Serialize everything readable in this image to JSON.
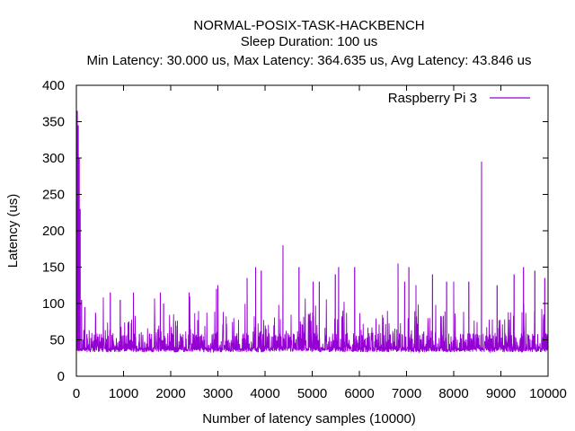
{
  "chart_data": {
    "type": "line",
    "title": "NORMAL-POSIX-TASK-HACKBENCH",
    "subtitle": "Sleep Duration: 100 us",
    "stats_line": "Min Latency: 30.000 us, Max Latency: 364.635 us, Avg Latency: 43.846 us",
    "xlabel": "Number of latency samples (10000)",
    "ylabel": "Latency (us)",
    "xlim": [
      0,
      10000
    ],
    "ylim": [
      0,
      400
    ],
    "x_ticks": [
      0,
      1000,
      2000,
      3000,
      4000,
      5000,
      6000,
      7000,
      8000,
      9000,
      10000
    ],
    "y_ticks": [
      0,
      50,
      100,
      150,
      200,
      250,
      300,
      350,
      400
    ],
    "grid": false,
    "legend_position": "top-right",
    "series": [
      {
        "name": "Raspberry Pi 3",
        "color": "#9400d3",
        "baseline": 35,
        "typical_range": [
          33,
          40
        ],
        "spikes": [
          {
            "x": 20,
            "y": 365
          },
          {
            "x": 40,
            "y": 345
          },
          {
            "x": 60,
            "y": 300
          },
          {
            "x": 80,
            "y": 230
          },
          {
            "x": 110,
            "y": 105
          },
          {
            "x": 180,
            "y": 95
          },
          {
            "x": 720,
            "y": 115
          },
          {
            "x": 930,
            "y": 105
          },
          {
            "x": 1210,
            "y": 115
          },
          {
            "x": 1780,
            "y": 115
          },
          {
            "x": 1850,
            "y": 100
          },
          {
            "x": 2390,
            "y": 115
          },
          {
            "x": 2970,
            "y": 120
          },
          {
            "x": 3000,
            "y": 125
          },
          {
            "x": 3620,
            "y": 135
          },
          {
            "x": 3800,
            "y": 150
          },
          {
            "x": 3920,
            "y": 145
          },
          {
            "x": 4380,
            "y": 180
          },
          {
            "x": 4720,
            "y": 150
          },
          {
            "x": 5020,
            "y": 130
          },
          {
            "x": 5150,
            "y": 130
          },
          {
            "x": 5490,
            "y": 140
          },
          {
            "x": 5560,
            "y": 150
          },
          {
            "x": 5900,
            "y": 150
          },
          {
            "x": 6820,
            "y": 155
          },
          {
            "x": 6960,
            "y": 130
          },
          {
            "x": 7050,
            "y": 150
          },
          {
            "x": 7200,
            "y": 125
          },
          {
            "x": 7550,
            "y": 140
          },
          {
            "x": 7850,
            "y": 130
          },
          {
            "x": 8000,
            "y": 130
          },
          {
            "x": 8320,
            "y": 130
          },
          {
            "x": 8590,
            "y": 295
          },
          {
            "x": 8920,
            "y": 125
          },
          {
            "x": 9280,
            "y": 140
          },
          {
            "x": 9480,
            "y": 150
          },
          {
            "x": 9720,
            "y": 145
          },
          {
            "x": 9930,
            "y": 135
          }
        ]
      }
    ]
  }
}
